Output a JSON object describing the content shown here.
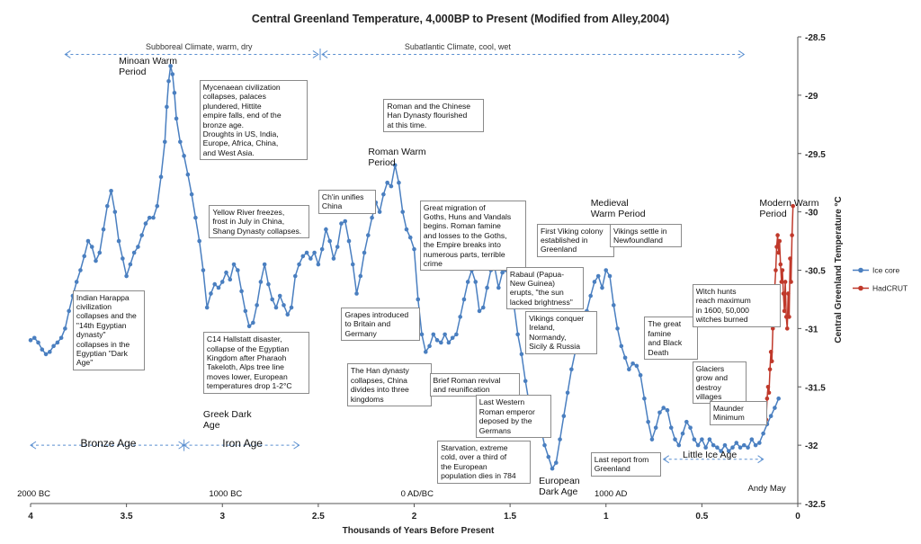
{
  "chart_data": {
    "type": "line",
    "title": "Central Greenland Temperature, 4,000BP to Present (Modified from Alley,2004)",
    "xlabel": "Thousands of Years Before Present",
    "ylabel": "Central Greenland Temperature °C",
    "xlim": [
      4,
      0
    ],
    "ylim": [
      -32.5,
      -28.5
    ],
    "x_ticks": [
      "4",
      "3.5",
      "3",
      "2.5",
      "2",
      "1.5",
      "1",
      "0.5",
      "0"
    ],
    "y_ticks": [
      "-28.5",
      "-29",
      "-29.5",
      "-30",
      "-30.5",
      "-31",
      "-31.5",
      "-32",
      "-32.5"
    ],
    "colors": {
      "ice_core": "#4a7fc0",
      "hadcrut": "#c0392b"
    },
    "grid": false,
    "legend_position": "right",
    "series": [
      {
        "name": "Ice core",
        "points": [
          [
            4.0,
            -31.1
          ],
          [
            3.98,
            -31.08
          ],
          [
            3.96,
            -31.12
          ],
          [
            3.94,
            -31.18
          ],
          [
            3.92,
            -31.22
          ],
          [
            3.9,
            -31.2
          ],
          [
            3.88,
            -31.15
          ],
          [
            3.86,
            -31.12
          ],
          [
            3.84,
            -31.08
          ],
          [
            3.82,
            -31.0
          ],
          [
            3.8,
            -30.85
          ],
          [
            3.78,
            -30.72
          ],
          [
            3.76,
            -30.6
          ],
          [
            3.74,
            -30.5
          ],
          [
            3.72,
            -30.38
          ],
          [
            3.7,
            -30.25
          ],
          [
            3.68,
            -30.3
          ],
          [
            3.66,
            -30.42
          ],
          [
            3.64,
            -30.35
          ],
          [
            3.62,
            -30.15
          ],
          [
            3.6,
            -29.95
          ],
          [
            3.58,
            -29.82
          ],
          [
            3.56,
            -30.0
          ],
          [
            3.54,
            -30.25
          ],
          [
            3.52,
            -30.4
          ],
          [
            3.5,
            -30.55
          ],
          [
            3.48,
            -30.45
          ],
          [
            3.46,
            -30.35
          ],
          [
            3.44,
            -30.3
          ],
          [
            3.42,
            -30.2
          ],
          [
            3.4,
            -30.1
          ],
          [
            3.38,
            -30.05
          ],
          [
            3.36,
            -30.05
          ],
          [
            3.34,
            -29.95
          ],
          [
            3.32,
            -29.7
          ],
          [
            3.3,
            -29.4
          ],
          [
            3.29,
            -29.1
          ],
          [
            3.28,
            -28.88
          ],
          [
            3.27,
            -28.75
          ],
          [
            3.26,
            -28.82
          ],
          [
            3.25,
            -28.98
          ],
          [
            3.24,
            -29.2
          ],
          [
            3.22,
            -29.4
          ],
          [
            3.2,
            -29.52
          ],
          [
            3.18,
            -29.68
          ],
          [
            3.16,
            -29.85
          ],
          [
            3.14,
            -30.05
          ],
          [
            3.12,
            -30.25
          ],
          [
            3.1,
            -30.5
          ],
          [
            3.08,
            -30.82
          ],
          [
            3.06,
            -30.7
          ],
          [
            3.04,
            -30.62
          ],
          [
            3.02,
            -30.65
          ],
          [
            3.0,
            -30.6
          ],
          [
            2.98,
            -30.52
          ],
          [
            2.96,
            -30.58
          ],
          [
            2.94,
            -30.45
          ],
          [
            2.92,
            -30.5
          ],
          [
            2.9,
            -30.68
          ],
          [
            2.88,
            -30.85
          ],
          [
            2.86,
            -30.98
          ],
          [
            2.84,
            -30.95
          ],
          [
            2.82,
            -30.8
          ],
          [
            2.8,
            -30.6
          ],
          [
            2.78,
            -30.45
          ],
          [
            2.76,
            -30.62
          ],
          [
            2.74,
            -30.75
          ],
          [
            2.72,
            -30.82
          ],
          [
            2.7,
            -30.72
          ],
          [
            2.68,
            -30.8
          ],
          [
            2.66,
            -30.88
          ],
          [
            2.64,
            -30.82
          ],
          [
            2.62,
            -30.55
          ],
          [
            2.6,
            -30.45
          ],
          [
            2.58,
            -30.38
          ],
          [
            2.56,
            -30.35
          ],
          [
            2.54,
            -30.4
          ],
          [
            2.52,
            -30.35
          ],
          [
            2.5,
            -30.45
          ],
          [
            2.48,
            -30.32
          ],
          [
            2.46,
            -30.15
          ],
          [
            2.44,
            -30.25
          ],
          [
            2.42,
            -30.4
          ],
          [
            2.4,
            -30.3
          ],
          [
            2.38,
            -30.1
          ],
          [
            2.36,
            -30.08
          ],
          [
            2.34,
            -30.25
          ],
          [
            2.32,
            -30.45
          ],
          [
            2.3,
            -30.7
          ],
          [
            2.28,
            -30.55
          ],
          [
            2.26,
            -30.35
          ],
          [
            2.24,
            -30.2
          ],
          [
            2.22,
            -30.05
          ],
          [
            2.2,
            -29.92
          ],
          [
            2.18,
            -30.0
          ],
          [
            2.16,
            -29.85
          ],
          [
            2.14,
            -29.75
          ],
          [
            2.12,
            -29.78
          ],
          [
            2.1,
            -29.6
          ],
          [
            2.08,
            -29.75
          ],
          [
            2.06,
            -30.0
          ],
          [
            2.04,
            -30.15
          ],
          [
            2.02,
            -30.22
          ],
          [
            2.0,
            -30.32
          ],
          [
            1.98,
            -30.75
          ],
          [
            1.96,
            -31.05
          ],
          [
            1.94,
            -31.2
          ],
          [
            1.92,
            -31.15
          ],
          [
            1.9,
            -31.05
          ],
          [
            1.88,
            -31.1
          ],
          [
            1.86,
            -31.12
          ],
          [
            1.84,
            -31.05
          ],
          [
            1.82,
            -31.12
          ],
          [
            1.8,
            -31.08
          ],
          [
            1.78,
            -31.05
          ],
          [
            1.76,
            -30.9
          ],
          [
            1.74,
            -30.75
          ],
          [
            1.72,
            -30.6
          ],
          [
            1.7,
            -30.5
          ],
          [
            1.68,
            -30.6
          ],
          [
            1.66,
            -30.85
          ],
          [
            1.64,
            -30.82
          ],
          [
            1.62,
            -30.65
          ],
          [
            1.6,
            -30.5
          ],
          [
            1.58,
            -30.48
          ],
          [
            1.56,
            -30.65
          ],
          [
            1.54,
            -30.52
          ],
          [
            1.52,
            -30.5
          ],
          [
            1.5,
            -30.62
          ],
          [
            1.48,
            -30.8
          ],
          [
            1.46,
            -31.05
          ],
          [
            1.44,
            -31.22
          ],
          [
            1.42,
            -31.45
          ],
          [
            1.4,
            -31.65
          ],
          [
            1.38,
            -31.75
          ],
          [
            1.36,
            -31.7
          ],
          [
            1.34,
            -31.85
          ],
          [
            1.32,
            -32.0
          ],
          [
            1.3,
            -32.1
          ],
          [
            1.28,
            -32.2
          ],
          [
            1.26,
            -32.15
          ],
          [
            1.24,
            -31.95
          ],
          [
            1.22,
            -31.75
          ],
          [
            1.2,
            -31.55
          ],
          [
            1.18,
            -31.35
          ],
          [
            1.16,
            -31.2
          ],
          [
            1.14,
            -31.15
          ],
          [
            1.12,
            -31.0
          ],
          [
            1.1,
            -30.85
          ],
          [
            1.08,
            -30.72
          ],
          [
            1.06,
            -30.6
          ],
          [
            1.04,
            -30.55
          ],
          [
            1.02,
            -30.65
          ],
          [
            1.0,
            -30.5
          ],
          [
            0.98,
            -30.55
          ],
          [
            0.96,
            -30.8
          ],
          [
            0.94,
            -31.0
          ],
          [
            0.92,
            -31.15
          ],
          [
            0.9,
            -31.25
          ],
          [
            0.88,
            -31.35
          ],
          [
            0.86,
            -31.3
          ],
          [
            0.84,
            -31.32
          ],
          [
            0.82,
            -31.4
          ],
          [
            0.8,
            -31.6
          ],
          [
            0.78,
            -31.8
          ],
          [
            0.76,
            -31.95
          ],
          [
            0.74,
            -31.85
          ],
          [
            0.72,
            -31.72
          ],
          [
            0.7,
            -31.68
          ],
          [
            0.68,
            -31.7
          ],
          [
            0.66,
            -31.85
          ],
          [
            0.64,
            -31.95
          ],
          [
            0.62,
            -32.0
          ],
          [
            0.6,
            -31.9
          ],
          [
            0.58,
            -31.8
          ],
          [
            0.56,
            -31.85
          ],
          [
            0.54,
            -31.95
          ],
          [
            0.52,
            -32.0
          ],
          [
            0.5,
            -31.95
          ],
          [
            0.48,
            -32.02
          ],
          [
            0.46,
            -31.95
          ],
          [
            0.44,
            -32.0
          ],
          [
            0.42,
            -32.02
          ],
          [
            0.4,
            -32.05
          ],
          [
            0.38,
            -32.0
          ],
          [
            0.36,
            -32.05
          ],
          [
            0.34,
            -32.02
          ],
          [
            0.32,
            -31.98
          ],
          [
            0.3,
            -32.02
          ],
          [
            0.28,
            -32.0
          ],
          [
            0.26,
            -32.02
          ],
          [
            0.24,
            -31.95
          ],
          [
            0.22,
            -32.0
          ],
          [
            0.2,
            -31.98
          ],
          [
            0.18,
            -31.9
          ],
          [
            0.16,
            -31.82
          ],
          [
            0.14,
            -31.75
          ],
          [
            0.12,
            -31.68
          ],
          [
            0.1,
            -31.6
          ]
        ]
      },
      {
        "name": "HadCRUT",
        "points": [
          [
            0.165,
            -31.78
          ],
          [
            0.16,
            -31.6
          ],
          [
            0.155,
            -31.5
          ],
          [
            0.15,
            -31.55
          ],
          [
            0.145,
            -31.35
          ],
          [
            0.14,
            -31.2
          ],
          [
            0.135,
            -31.28
          ],
          [
            0.13,
            -31.0
          ],
          [
            0.125,
            -30.85
          ],
          [
            0.12,
            -30.65
          ],
          [
            0.115,
            -30.5
          ],
          [
            0.11,
            -30.3
          ],
          [
            0.105,
            -30.2
          ],
          [
            0.1,
            -30.35
          ],
          [
            0.095,
            -30.25
          ],
          [
            0.09,
            -30.45
          ],
          [
            0.085,
            -30.6
          ],
          [
            0.08,
            -30.5
          ],
          [
            0.075,
            -30.7
          ],
          [
            0.07,
            -30.85
          ],
          [
            0.065,
            -30.6
          ],
          [
            0.06,
            -30.9
          ],
          [
            0.055,
            -31.0
          ],
          [
            0.05,
            -30.7
          ],
          [
            0.045,
            -30.9
          ],
          [
            0.04,
            -30.4
          ],
          [
            0.035,
            -30.6
          ],
          [
            0.03,
            -30.2
          ],
          [
            0.025,
            -29.95
          ]
        ]
      }
    ]
  },
  "labels": {
    "era_subboreal": "Subboreal Climate, warm, dry",
    "era_subatlantic": "Subatlantic Climate, cool, wet",
    "bronze_age": "Bronze Age",
    "iron_age": "Iron Age",
    "greek_dark_age": "Greek Dark\nAge",
    "little_ice_age": "Little Ice Age",
    "minoan": "Minoan Warm\nPeriod",
    "roman": "Roman Warm\nPeriod",
    "medieval": "Medieval\nWarm Period",
    "modern": "Modern Warm\nPeriod",
    "european_dark": "European\nDark Age",
    "bc2000": "2000 BC",
    "bc1000": "1000 BC",
    "ad0": "0 AD/BC",
    "ad1000": "1000 AD",
    "andy": "Andy May"
  },
  "annotations": {
    "mycenaean": "Mycenaean civilization\ncollapses, palaces\nplundered, Hittite\nempire falls, end of the\nbronze age.\nDroughts in US, India,\nEurope, Africa, China,\nand West Asia.",
    "roman_chinese": "Roman and the Chinese\nHan Dynasty flourished\nat this time.",
    "chin": "Ch'in unifies\nChina",
    "goths": "Great migration of\nGoths, Huns and Vandals\nbegins. Roman famine\nand losses to the Goths,\nthe Empire breaks into\nnumerous parts, terrible\ncrime",
    "yellow_river": "Yellow River freezes,\nfrost in July in China,\nShang Dynasty collapses.",
    "harappa": "Indian Harappa\ncivilization\ncollapses and the\n\"14th Egyptian\ndynasty\"\ncollapses in the\nEgyptian \"Dark\nAge\"",
    "hallstatt": "C14 Hallstatt disaster,\ncollapse of the Egyptian\nKingdom after Pharaoh\nTakeloth, Alps tree line\nmoves lower, European\ntemperatures drop 1-2°C",
    "grapes": "Grapes introduced\nto Britain and\nGermany",
    "han_collapse": "The Han dynasty\ncollapses, China\ndivides into three\nkingdoms",
    "roman_revival": "Brief Roman revival\nand reunification",
    "last_emperor": "Last Western\nRoman emperor\ndeposed by the\nGermans",
    "starvation": "Starvation, extreme\ncold, over a third of\nthe European\npopulation dies in 784",
    "first_viking": "First Viking colony\nestablished in\nGreenland",
    "rabaul": "Rabaul (Papua-\nNew Guinea)\nerupts, \"the sun\nlacked brightness\"",
    "vikings_conquer": "Vikings conquer\nIreland,\nNormandy,\nSicily & Russia",
    "vikings_settle": "Vikings settle in\nNewfoundland",
    "famine": "The great\nfamine\nand Black\nDeath",
    "witch_hunts": "Witch hunts\nreach maximum\nin 1600, 50,000\nwitches burned",
    "glaciers": "Glaciers\ngrow and\ndestroy\nvillages",
    "maunder": "Maunder\nMinimum",
    "last_report": "Last report from\nGreenland"
  }
}
